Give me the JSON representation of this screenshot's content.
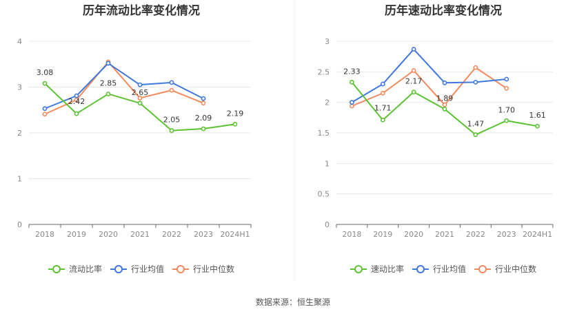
{
  "chart_data": [
    {
      "type": "line",
      "title": "历年流动比率变化情况",
      "categories": [
        "2018",
        "2019",
        "2020",
        "2021",
        "2022",
        "2023",
        "2024H1"
      ],
      "ylim": [
        0,
        4
      ],
      "yticks": [
        "0",
        "1",
        "2",
        "3",
        "4"
      ],
      "grid": true,
      "legend_position": "bottom",
      "series": [
        {
          "name": "流动比率",
          "color": "#5bc232",
          "values": [
            3.08,
            2.42,
            2.85,
            2.65,
            2.05,
            2.09,
            2.19
          ],
          "labels": [
            "3.08",
            "2.42",
            "2.85",
            "2.65",
            "2.05",
            "2.09",
            "2.19"
          ]
        },
        {
          "name": "行业均值",
          "color": "#3f77dc",
          "values": [
            2.53,
            2.81,
            3.52,
            3.05,
            3.1,
            2.75,
            null
          ]
        },
        {
          "name": "行业中位数",
          "color": "#f08a5d",
          "values": [
            2.41,
            2.72,
            3.55,
            2.76,
            2.93,
            2.65,
            null
          ]
        }
      ]
    },
    {
      "type": "line",
      "title": "历年速动比率变化情况",
      "categories": [
        "2018",
        "2019",
        "2020",
        "2021",
        "2022",
        "2023",
        "2024H1"
      ],
      "ylim": [
        0,
        3
      ],
      "yticks": [
        "0",
        "0.5",
        "1",
        "1.5",
        "2",
        "2.5",
        "3"
      ],
      "grid": true,
      "legend_position": "bottom",
      "series": [
        {
          "name": "速动比率",
          "color": "#5bc232",
          "values": [
            2.33,
            1.71,
            2.17,
            1.89,
            1.47,
            1.7,
            1.61
          ],
          "labels": [
            "2.33",
            "1.71",
            "2.17",
            "1.89",
            "1.47",
            "1.70",
            "1.61"
          ]
        },
        {
          "name": "行业均值",
          "color": "#3f77dc",
          "values": [
            2.0,
            2.3,
            2.87,
            2.32,
            2.33,
            2.38,
            null
          ]
        },
        {
          "name": "行业中位数",
          "color": "#f08a5d",
          "values": [
            1.94,
            2.15,
            2.52,
            1.96,
            2.57,
            2.23,
            null
          ]
        }
      ]
    }
  ],
  "source_text": "数据来源：恒生聚源"
}
